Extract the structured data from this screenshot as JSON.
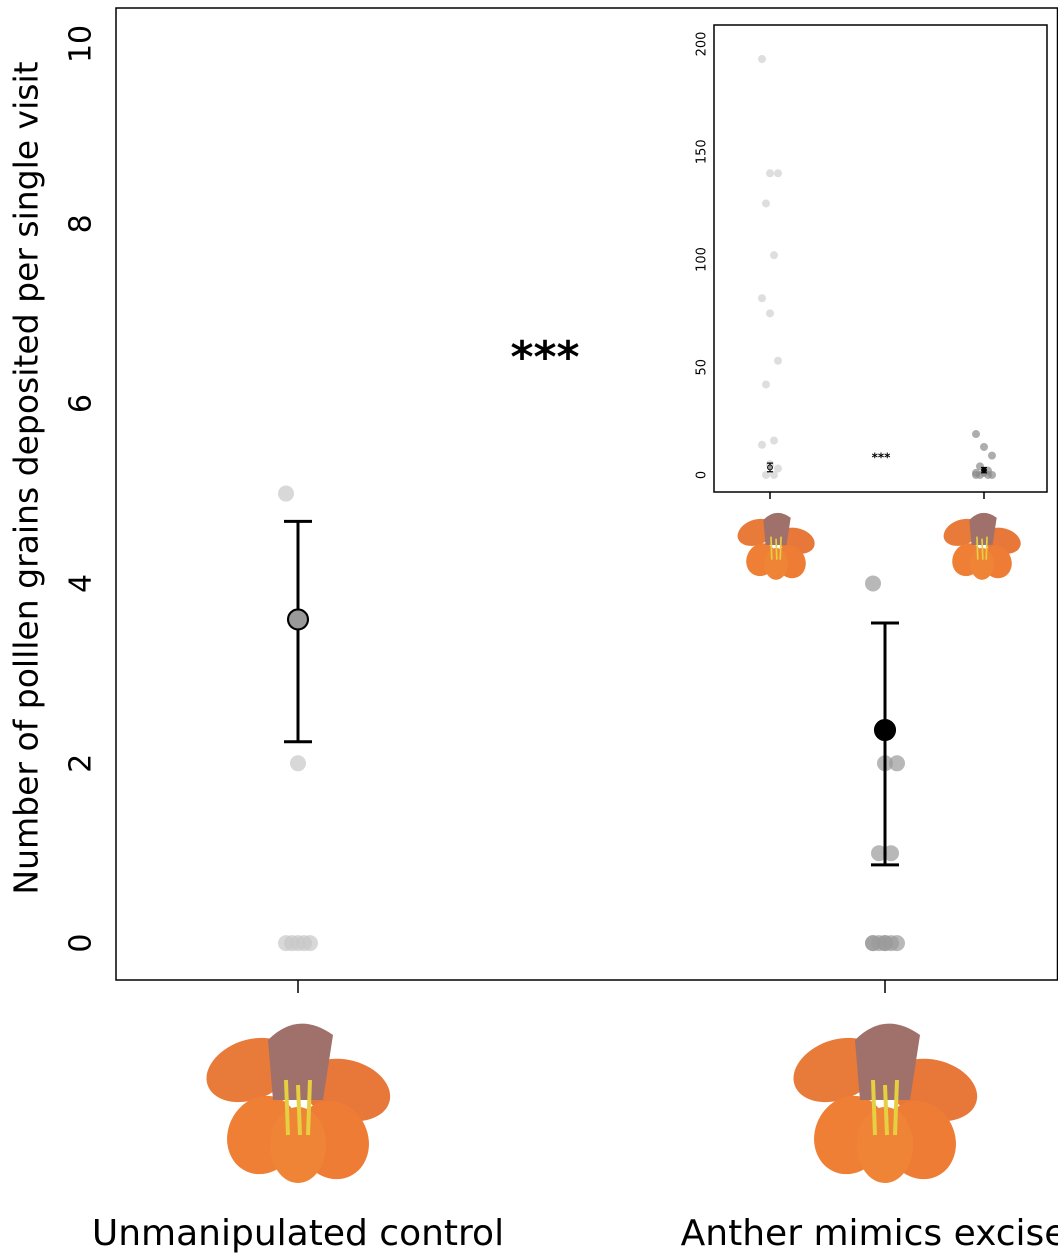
{
  "chart_data": [
    {
      "type": "dot",
      "ylabel": "Number of polllen grains deposited per single visit",
      "categories": [
        "Unmanipulated control",
        "Anther mimics excised"
      ],
      "ylim": [
        -0.41,
        10.4
      ],
      "yticks": [
        0,
        2,
        4,
        6,
        8,
        10
      ],
      "annotation": "***",
      "series": [
        {
          "name": "Unmanipulated control",
          "point_color": "#c8c8c8",
          "mean_color": "#999999",
          "points": [
            5,
            2,
            0,
            0,
            0,
            0,
            0
          ],
          "mean": 3.6,
          "lower": 2.24,
          "upper": 4.69
        },
        {
          "name": "Anther mimics excised",
          "point_color": "#9a9a9a",
          "mean_color": "#000000",
          "points": [
            4,
            2,
            2,
            1,
            1,
            0,
            0,
            0,
            0,
            0,
            0,
            0
          ],
          "mean": 2.37,
          "lower": 0.87,
          "upper": 3.56
        }
      ]
    },
    {
      "type": "dot",
      "ylim": [
        -7.9,
        208.8
      ],
      "yticks": [
        0,
        50,
        100,
        150,
        200
      ],
      "annotation": "***",
      "series": [
        {
          "point_color": "#d0d0d0",
          "mean_color": "#999999",
          "points": [
            193,
            140,
            140,
            126,
            102,
            82,
            75,
            53,
            42,
            16,
            14,
            5,
            3,
            0,
            0
          ],
          "mean": 3.5,
          "lower": 1.5,
          "upper": 5.5
        },
        {
          "point_color": "#8a8a8a",
          "mean_color": "#000000",
          "points": [
            19,
            13,
            9,
            4,
            2,
            1,
            1,
            0,
            0,
            0,
            0
          ],
          "mean": 2.3,
          "lower": 1,
          "upper": 3.5
        }
      ]
    }
  ]
}
